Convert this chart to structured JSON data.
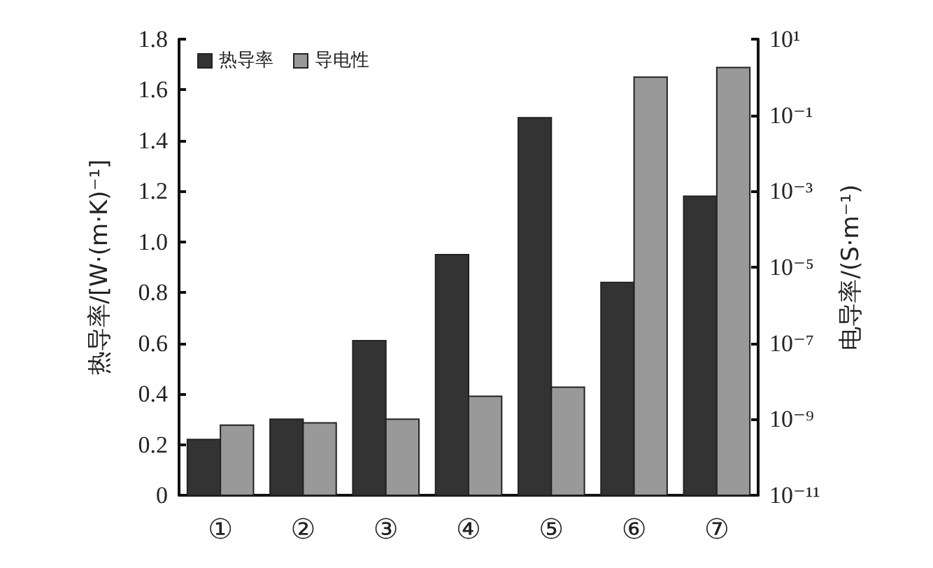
{
  "chart_data": {
    "type": "bar",
    "categories": [
      "①",
      "②",
      "③",
      "④",
      "⑤",
      "⑥",
      "⑦"
    ],
    "ylabel": "热导率/[W·(m·K)⁻¹]",
    "y2label": "电导率/(S·m⁻¹)",
    "ylim": [
      0,
      1.8
    ],
    "yticks": [
      0,
      0.2,
      0.4,
      0.6,
      0.8,
      {
        "value": 1,
        "label": "1.0"
      },
      1.2,
      1.4,
      1.6,
      1.8
    ],
    "y2lim": [
      1e-11,
      10
    ],
    "y2ticks": [
      {
        "value": 1e-11,
        "label": "10⁻¹¹"
      },
      {
        "value": 1e-09,
        "label": "10⁻⁹"
      },
      {
        "value": 1e-07,
        "label": "10⁻⁷"
      },
      {
        "value": 1e-05,
        "label": "10⁻⁵"
      },
      {
        "value": 0.001,
        "label": "10⁻³"
      },
      {
        "value": 0.1,
        "label": "10⁻¹"
      },
      {
        "value": 10,
        "label": "10¹"
      }
    ],
    "log": "y2",
    "grid": false,
    "legend": "top left",
    "series": [
      {
        "name": "热导率",
        "color": "#333333",
        "values": [
          0.22,
          0.3,
          0.61,
          0.95,
          1.49,
          0.84,
          1.18
        ]
      },
      {
        "name": "导电性",
        "color": "#999999",
        "axis": "y2",
        "values": [
          7e-10,
          8e-10,
          1e-09,
          4e-09,
          7e-09,
          1,
          1.8
        ]
      }
    ]
  }
}
